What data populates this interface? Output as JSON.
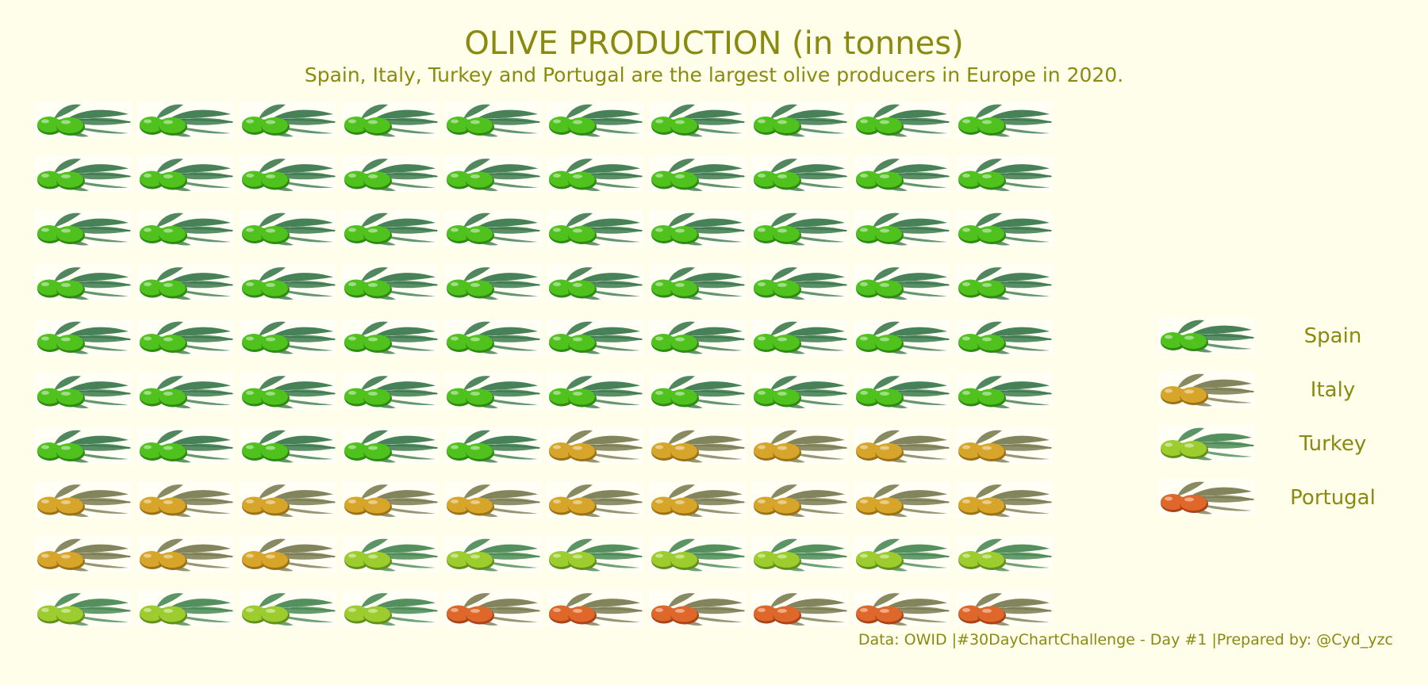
{
  "chart_data": {
    "type": "waffle",
    "title": "OLIVE PRODUCTION (in tonnes)",
    "subtitle": "Spain, Italy, Turkey and Portugal are the largest olive producers in Europe in 2020.",
    "caption": "Data: OWID |#30DayChartChallenge - Day #1 |Prepared by: @Cyd_yzc",
    "grid": {
      "rows": 10,
      "cols": 10,
      "fill_order": "row-major from top-left"
    },
    "categories": [
      "Spain",
      "Italy",
      "Turkey",
      "Portugal"
    ],
    "values": [
      65,
      18,
      11,
      6
    ],
    "legend_position": "right",
    "colors": {
      "Spain": {
        "fruit": "#4fc21e",
        "fruit_dark": "#2f8a12",
        "leaf": "#3d7a4e"
      },
      "Italy": {
        "fruit": "#d6a52a",
        "fruit_dark": "#9c7216",
        "leaf": "#7b7d52"
      },
      "Turkey": {
        "fruit": "#9ccc2e",
        "fruit_dark": "#62901a",
        "leaf": "#4a8a55"
      },
      "Portugal": {
        "fruit": "#e0672a",
        "fruit_dark": "#a8431a",
        "leaf": "#7b7d52"
      }
    }
  }
}
